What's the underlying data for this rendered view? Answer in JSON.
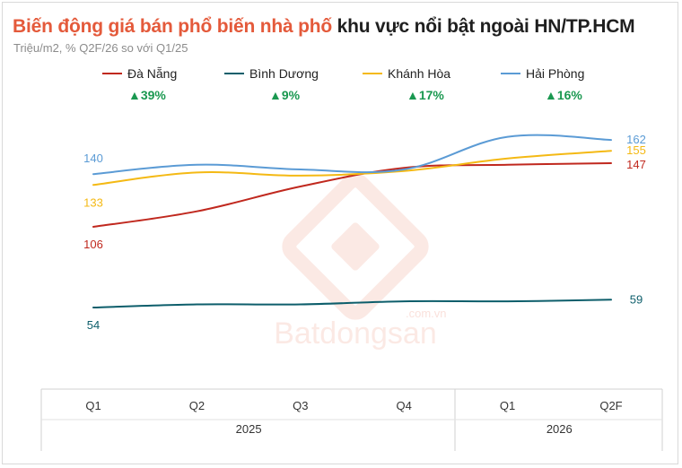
{
  "title_highlight": "Biến động giá bán phổ biến nhà phố",
  "title_rest": "khu vực nổi bật ngoài HN/TP.HCM",
  "subtitle": "Triệu/m2, % Q2F/26 so với Q1/25",
  "watermark": {
    "brand": "Batdongsan",
    "domain": ".com.vn"
  },
  "colors": {
    "Đà Nẵng": "#c0281e",
    "Bình Dương": "#0d5e6b",
    "Khánh Hòa": "#f4b914",
    "Hải Phòng": "#5b9bd5",
    "change": "#1a9850"
  },
  "chart_data": {
    "type": "line",
    "title": "Biến động giá bán phổ biến nhà phố khu vực nổi bật ngoài HN/TP.HCM",
    "subtitle": "Triệu/m2, % Q2F/26 so với Q1/25",
    "categories": [
      "Q1",
      "Q2",
      "Q3",
      "Q4",
      "Q1",
      "Q2F"
    ],
    "year_groups": [
      {
        "label": "2025",
        "span": [
          0,
          3
        ]
      },
      {
        "label": "2026",
        "span": [
          4,
          5
        ]
      }
    ],
    "ylim": [
      0,
      200
    ],
    "grid": false,
    "legend": "top",
    "series": [
      {
        "name": "Đà Nẵng",
        "values": [
          106,
          116,
          132,
          144,
          146,
          147
        ],
        "change": "▲39%",
        "labels": {
          "first": "106",
          "last": "147"
        }
      },
      {
        "name": "Bình Dương",
        "values": [
          54,
          56,
          56,
          58,
          58,
          59
        ],
        "change": "▲9%",
        "labels": {
          "first": "54",
          "last": "59"
        }
      },
      {
        "name": "Khánh Hòa",
        "values": [
          133,
          141,
          139,
          142,
          150,
          155
        ],
        "change": "▲17%",
        "labels": {
          "first": "133",
          "last": "155"
        }
      },
      {
        "name": "Hải Phòng",
        "values": [
          140,
          146,
          143,
          143,
          164,
          162
        ],
        "change": "▲16%",
        "labels": {
          "first": "140",
          "last": "162"
        }
      }
    ]
  }
}
